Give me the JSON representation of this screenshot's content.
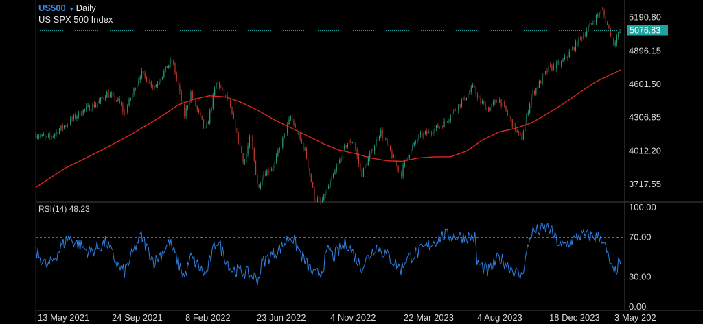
{
  "header": {
    "symbol": "US500",
    "caret_icon": "caret-down-icon",
    "timeframe": "Daily",
    "description": "US SPX 500 Index"
  },
  "colors": {
    "background": "#000000",
    "bullish": "#2a9d7a",
    "bearish": "#c0392b",
    "ma_line": "#e0261f",
    "rsi_line": "#2f7fe0",
    "price_tag": "#1fa3a0",
    "grid": "#333333",
    "axis_text": "#d9d9d9"
  },
  "chart_data": [
    {
      "type": "candlestick",
      "title": "US500 Daily",
      "series_name": "US SPX 500 Index",
      "y_ticks": [
        "5190.80",
        "4896.15",
        "4601.50",
        "4306.85",
        "4012.20",
        "3717.55"
      ],
      "ylim": [
        3590,
        5310
      ],
      "current_price": "5076.83",
      "x_ticks": [
        "13 May 2021",
        "24 Sep 2021",
        "8 Feb 2022",
        "23 Jun 2022",
        "4 Nov 2022",
        "22 Mar 2023",
        "4 Aug 2023",
        "18 Dec 2023",
        "3 May 202"
      ],
      "xlim": [
        "2021-04-20",
        "2024-05-10"
      ],
      "close_path": [
        [
          "2021-04-20",
          4160
        ],
        [
          "2021-05-13",
          4120
        ],
        [
          "2021-06-15",
          4240
        ],
        [
          "2021-07-15",
          4360
        ],
        [
          "2021-08-15",
          4430
        ],
        [
          "2021-09-01",
          4520
        ],
        [
          "2021-09-24",
          4450
        ],
        [
          "2021-10-05",
          4340
        ],
        [
          "2021-11-05",
          4700
        ],
        [
          "2021-12-01",
          4580
        ],
        [
          "2021-12-30",
          4790
        ],
        [
          "2022-01-04",
          4810
        ],
        [
          "2022-01-27",
          4330
        ],
        [
          "2022-02-08",
          4520
        ],
        [
          "2022-03-08",
          4180
        ],
        [
          "2022-03-29",
          4630
        ],
        [
          "2022-04-20",
          4450
        ],
        [
          "2022-05-20",
          3900
        ],
        [
          "2022-06-01",
          4150
        ],
        [
          "2022-06-16",
          3660
        ],
        [
          "2022-06-23",
          3800
        ],
        [
          "2022-07-15",
          3880
        ],
        [
          "2022-08-16",
          4310
        ],
        [
          "2022-09-13",
          4000
        ],
        [
          "2022-09-30",
          3600
        ],
        [
          "2022-10-13",
          3550
        ],
        [
          "2022-11-04",
          3780
        ],
        [
          "2022-11-30",
          4080
        ],
        [
          "2022-12-13",
          4100
        ],
        [
          "2022-12-28",
          3800
        ],
        [
          "2023-01-15",
          3990
        ],
        [
          "2023-02-02",
          4190
        ],
        [
          "2023-03-13",
          3800
        ],
        [
          "2023-03-22",
          3940
        ],
        [
          "2023-04-15",
          4130
        ],
        [
          "2023-06-01",
          4250
        ],
        [
          "2023-07-31",
          4590
        ],
        [
          "2023-08-04",
          4480
        ],
        [
          "2023-08-25",
          4380
        ],
        [
          "2023-09-15",
          4470
        ],
        [
          "2023-10-27",
          4110
        ],
        [
          "2023-11-15",
          4500
        ],
        [
          "2023-12-18",
          4740
        ],
        [
          "2024-01-10",
          4780
        ],
        [
          "2024-02-15",
          5000
        ],
        [
          "2024-03-28",
          5260
        ],
        [
          "2024-04-19",
          4970
        ],
        [
          "2024-05-03",
          5076.83
        ]
      ],
      "ma_path": [
        [
          "2021-04-20",
          3690
        ],
        [
          "2021-06-15",
          3860
        ],
        [
          "2021-08-15",
          4000
        ],
        [
          "2021-10-15",
          4150
        ],
        [
          "2021-12-15",
          4320
        ],
        [
          "2022-01-15",
          4420
        ],
        [
          "2022-02-15",
          4470
        ],
        [
          "2022-03-15",
          4500
        ],
        [
          "2022-04-15",
          4490
        ],
        [
          "2022-05-15",
          4440
        ],
        [
          "2022-06-15",
          4370
        ],
        [
          "2022-07-15",
          4290
        ],
        [
          "2022-08-15",
          4220
        ],
        [
          "2022-09-15",
          4150
        ],
        [
          "2022-10-15",
          4080
        ],
        [
          "2022-11-15",
          4020
        ],
        [
          "2022-12-15",
          3990
        ],
        [
          "2023-01-15",
          3950
        ],
        [
          "2023-02-15",
          3925
        ],
        [
          "2023-03-15",
          3920
        ],
        [
          "2023-04-15",
          3950
        ],
        [
          "2023-05-15",
          3960
        ],
        [
          "2023-06-15",
          3960
        ],
        [
          "2023-07-15",
          4010
        ],
        [
          "2023-08-15",
          4110
        ],
        [
          "2023-09-15",
          4180
        ],
        [
          "2023-10-15",
          4210
        ],
        [
          "2023-11-15",
          4260
        ],
        [
          "2023-12-15",
          4340
        ],
        [
          "2024-01-15",
          4430
        ],
        [
          "2024-02-15",
          4530
        ],
        [
          "2024-03-15",
          4620
        ],
        [
          "2024-04-15",
          4690
        ],
        [
          "2024-05-03",
          4730
        ]
      ]
    },
    {
      "type": "line",
      "title": "RSI(14) 48.23",
      "label": "RSI(14)",
      "value": "48.23",
      "y_ticks": [
        "100.00",
        "70.00",
        "30.00",
        "0.00"
      ],
      "ylim": [
        0,
        100
      ],
      "levels": [
        70,
        30
      ],
      "rsi_path": [
        [
          "2021-04-20",
          55
        ],
        [
          "2021-05-13",
          40
        ],
        [
          "2021-06-20",
          70
        ],
        [
          "2021-08-01",
          55
        ],
        [
          "2021-09-01",
          65
        ],
        [
          "2021-09-24",
          40
        ],
        [
          "2021-10-05",
          35
        ],
        [
          "2021-11-05",
          72
        ],
        [
          "2021-12-01",
          45
        ],
        [
          "2021-12-30",
          65
        ],
        [
          "2022-01-27",
          30
        ],
        [
          "2022-02-08",
          50
        ],
        [
          "2022-03-08",
          32
        ],
        [
          "2022-03-29",
          68
        ],
        [
          "2022-04-25",
          38
        ],
        [
          "2022-05-20",
          35
        ],
        [
          "2022-06-16",
          28
        ],
        [
          "2022-06-23",
          45
        ],
        [
          "2022-07-30",
          60
        ],
        [
          "2022-08-16",
          72
        ],
        [
          "2022-09-13",
          45
        ],
        [
          "2022-09-30",
          32
        ],
        [
          "2022-10-13",
          35
        ],
        [
          "2022-10-28",
          60
        ],
        [
          "2022-11-04",
          50
        ],
        [
          "2022-11-30",
          65
        ],
        [
          "2022-12-28",
          40
        ],
        [
          "2023-01-25",
          62
        ],
        [
          "2023-02-15",
          52
        ],
        [
          "2023-03-13",
          38
        ],
        [
          "2023-03-22",
          48
        ],
        [
          "2023-04-15",
          55
        ],
        [
          "2023-06-01",
          72
        ],
        [
          "2023-07-31",
          70
        ],
        [
          "2023-08-04",
          45
        ],
        [
          "2023-08-25",
          35
        ],
        [
          "2023-09-15",
          50
        ],
        [
          "2023-10-27",
          30
        ],
        [
          "2023-11-15",
          75
        ],
        [
          "2023-12-18",
          80
        ],
        [
          "2024-01-10",
          60
        ],
        [
          "2024-02-15",
          72
        ],
        [
          "2024-03-28",
          70
        ],
        [
          "2024-04-19",
          32
        ],
        [
          "2024-05-03",
          48.23
        ]
      ]
    }
  ]
}
